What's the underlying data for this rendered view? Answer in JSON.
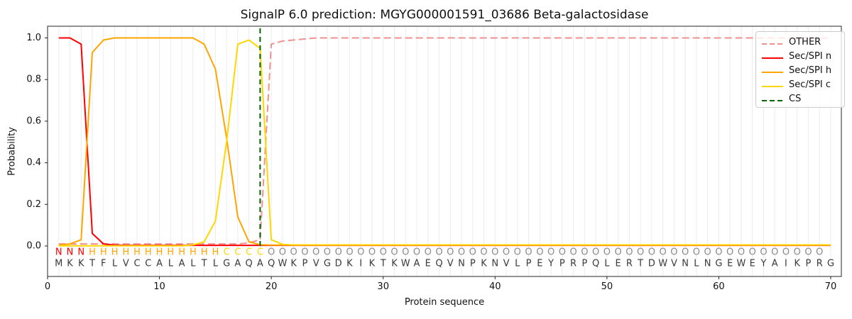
{
  "chart_data": {
    "type": "line",
    "title": "SignalP 6.0 prediction: MGYG000001591_03686 Beta-galactosidase",
    "xlabel": "Protein sequence",
    "ylabel": "Probability",
    "xlim": [
      0,
      71
    ],
    "ylim": [
      -0.147,
      1.056
    ],
    "x_ticks": [
      0,
      10,
      20,
      30,
      40,
      50,
      60,
      70
    ],
    "y_ticks": [
      0.0,
      0.2,
      0.4,
      0.6,
      0.8,
      1.0
    ],
    "grid": "vertical-per-residue",
    "legend_position": "upper right",
    "x": "residue positions 1-70",
    "series": [
      {
        "name": "OTHER",
        "color": "#f28f8f",
        "style": "dashed",
        "values": [
          0.01,
          0.01,
          0.01,
          0.01,
          0.01,
          0.01,
          0.01,
          0.01,
          0.01,
          0.01,
          0.01,
          0.01,
          0.01,
          0.01,
          0.01,
          0.01,
          0.01,
          0.015,
          0.03,
          0.97,
          0.985,
          0.99,
          0.995,
          1.0,
          1.0,
          1.0,
          1.0,
          1.0,
          1.0,
          1.0,
          1.0,
          1.0,
          1.0,
          1.0,
          1.0,
          1.0,
          1.0,
          1.0,
          1.0,
          1.0,
          1.0,
          1.0,
          1.0,
          1.0,
          1.0,
          1.0,
          1.0,
          1.0,
          1.0,
          1.0,
          1.0,
          1.0,
          1.0,
          1.0,
          1.0,
          1.0,
          1.0,
          1.0,
          1.0,
          1.0,
          1.0,
          1.0,
          1.0,
          1.0,
          1.0,
          1.0,
          1.0,
          1.0,
          1.0,
          1.0
        ]
      },
      {
        "name": "Sec/SPI n",
        "color": "#ff0000",
        "style": "solid",
        "values": [
          1.0,
          1.0,
          0.97,
          0.06,
          0.01,
          0.004,
          0.003,
          0.003,
          0.003,
          0.003,
          0.003,
          0.003,
          0.003,
          0.003,
          0.003,
          0.003,
          0.003,
          0.003,
          0.003,
          0.003,
          0.003,
          0.003,
          0.003,
          0.003,
          0.003,
          0.003,
          0.003,
          0.003,
          0.003,
          0.003,
          0.003,
          0.003,
          0.003,
          0.003,
          0.003,
          0.003,
          0.003,
          0.003,
          0.003,
          0.003,
          0.003,
          0.003,
          0.003,
          0.003,
          0.003,
          0.003,
          0.003,
          0.003,
          0.003,
          0.003,
          0.003,
          0.003,
          0.003,
          0.003,
          0.003,
          0.003,
          0.003,
          0.003,
          0.003,
          0.003,
          0.003,
          0.003,
          0.003,
          0.003,
          0.003,
          0.003,
          0.003,
          0.003,
          0.003,
          0.003
        ]
      },
      {
        "name": "Sec/SPI h",
        "color": "#ffa500",
        "style": "solid",
        "values": [
          0.004,
          0.01,
          0.03,
          0.93,
          0.99,
          1.0,
          1.0,
          1.0,
          1.0,
          1.0,
          1.0,
          1.0,
          1.0,
          0.97,
          0.85,
          0.52,
          0.14,
          0.02,
          0.006,
          0.004,
          0.004,
          0.004,
          0.004,
          0.004,
          0.004,
          0.004,
          0.004,
          0.004,
          0.004,
          0.004,
          0.004,
          0.004,
          0.004,
          0.004,
          0.004,
          0.004,
          0.004,
          0.004,
          0.004,
          0.004,
          0.004,
          0.004,
          0.004,
          0.004,
          0.004,
          0.004,
          0.004,
          0.004,
          0.004,
          0.004,
          0.004,
          0.004,
          0.004,
          0.004,
          0.004,
          0.004,
          0.004,
          0.004,
          0.004,
          0.004,
          0.004,
          0.004,
          0.004,
          0.004,
          0.004,
          0.004,
          0.004,
          0.004,
          0.004,
          0.004
        ]
      },
      {
        "name": "Sec/SPI c",
        "color": "#ffd700",
        "style": "solid",
        "values": [
          0.001,
          0.001,
          0.001,
          0.001,
          0.001,
          0.001,
          0.001,
          0.001,
          0.001,
          0.001,
          0.001,
          0.001,
          0.005,
          0.02,
          0.12,
          0.5,
          0.97,
          0.99,
          0.95,
          0.03,
          0.008,
          0.005,
          0.005,
          0.005,
          0.005,
          0.005,
          0.005,
          0.005,
          0.005,
          0.005,
          0.005,
          0.005,
          0.005,
          0.005,
          0.005,
          0.005,
          0.005,
          0.005,
          0.005,
          0.005,
          0.005,
          0.005,
          0.005,
          0.005,
          0.005,
          0.005,
          0.005,
          0.005,
          0.005,
          0.005,
          0.005,
          0.005,
          0.005,
          0.005,
          0.005,
          0.005,
          0.005,
          0.005,
          0.005,
          0.005,
          0.005,
          0.005,
          0.005,
          0.005,
          0.005,
          0.005,
          0.005,
          0.005,
          0.005,
          0.005
        ]
      }
    ],
    "cs_line": {
      "name": "CS",
      "x": 19,
      "color": "#006400",
      "style": "dashed"
    },
    "sequence": "MKKTFLVCCALALTLGAQAQWKPVGDKIKTKWAEQVNPKNVLPEYPRPQLERTDWVNLNGEWEYAIKPRG",
    "region_labels": "NNNHHHHHHHHHHHHCCCCOOOOOOOOOOOOOOOOOOOOOOOOOOOOOOOOOOOOOOOOOOOOOOOOOO",
    "label_colors": {
      "N": "#ff0000",
      "H": "#ffa500",
      "C": "#ffd700",
      "O": "#8a8a8a"
    },
    "sequence_color": "#3a3a3a",
    "grid_color": "#ececec",
    "spine_color": "#262626"
  },
  "legend": {
    "items": [
      {
        "label": "OTHER",
        "color": "#f28f8f",
        "style": "dashed"
      },
      {
        "label": "Sec/SPI n",
        "color": "#ff0000",
        "style": "solid"
      },
      {
        "label": "Sec/SPI h",
        "color": "#ffa500",
        "style": "solid"
      },
      {
        "label": "Sec/SPI c",
        "color": "#ffd700",
        "style": "solid"
      },
      {
        "label": "CS",
        "color": "#006400",
        "style": "dashed"
      }
    ]
  }
}
